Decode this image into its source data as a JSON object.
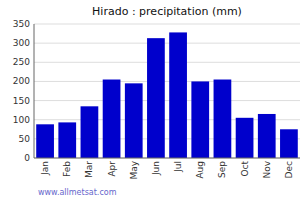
{
  "chart_data": {
    "type": "bar",
    "title": "Hirado : precipitation (mm)",
    "categories": [
      "Jan",
      "Feb",
      "Mar",
      "Apr",
      "May",
      "Jun",
      "Jul",
      "Aug",
      "Sep",
      "Oct",
      "Nov",
      "Dec"
    ],
    "values": [
      88,
      93,
      135,
      205,
      195,
      313,
      328,
      200,
      205,
      105,
      115,
      75
    ],
    "color": "#0000CC",
    "ylim": [
      0,
      350
    ],
    "yticks": [
      0,
      50,
      100,
      150,
      200,
      250,
      300,
      350
    ],
    "grid": true,
    "annotations": [
      "www.allmetsat.com"
    ]
  }
}
